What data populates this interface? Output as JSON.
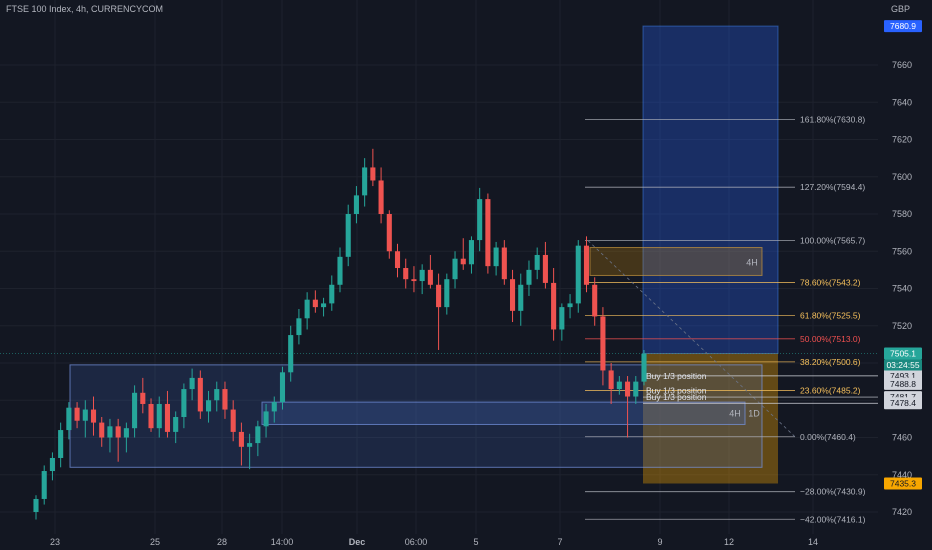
{
  "header": {
    "title": "FTSE 100 Index, 4h, CURRENCYCOM",
    "currency": "GBP"
  },
  "chart_data": {
    "type": "candlestick",
    "instrument": "FTSE 100 Index",
    "timeframe": "4h",
    "source": "CURRENCYCOM",
    "ylim": [
      7410,
      7690
    ],
    "y_ticks": [
      7420,
      7440,
      7460,
      7480,
      7500,
      7520,
      7540,
      7560,
      7580,
      7600,
      7620,
      7640,
      7660
    ],
    "x_ticks": [
      "23",
      "25",
      "28",
      "14:00",
      "Dec",
      "06:00",
      "5",
      "7",
      "9",
      "12",
      "14"
    ],
    "last_price": "7505.1",
    "countdown": "03:24:55",
    "candles": [
      [
        7420,
        7429,
        7416,
        7427
      ],
      [
        7427,
        7445,
        7424,
        7442
      ],
      [
        7442,
        7452,
        7437,
        7449
      ],
      [
        7449,
        7468,
        7444,
        7464
      ],
      [
        7464,
        7479,
        7459,
        7476
      ],
      [
        7476,
        7479,
        7465,
        7469
      ],
      [
        7469,
        7480,
        7460,
        7475
      ],
      [
        7475,
        7482,
        7461,
        7468
      ],
      [
        7468,
        7471,
        7455,
        7460
      ],
      [
        7460,
        7470,
        7452,
        7466
      ],
      [
        7466,
        7470,
        7447,
        7460
      ],
      [
        7460,
        7468,
        7452,
        7465
      ],
      [
        7465,
        7488,
        7460,
        7484
      ],
      [
        7484,
        7492,
        7473,
        7478
      ],
      [
        7478,
        7481,
        7463,
        7465
      ],
      [
        7465,
        7482,
        7460,
        7478
      ],
      [
        7478,
        7485,
        7460,
        7463
      ],
      [
        7463,
        7474,
        7457,
        7471
      ],
      [
        7471,
        7489,
        7465,
        7486
      ],
      [
        7486,
        7497,
        7480,
        7492
      ],
      [
        7492,
        7496,
        7470,
        7474
      ],
      [
        7474,
        7485,
        7468,
        7480
      ],
      [
        7480,
        7490,
        7474,
        7486
      ],
      [
        7486,
        7490,
        7470,
        7475
      ],
      [
        7475,
        7480,
        7458,
        7463
      ],
      [
        7463,
        7468,
        7445,
        7455
      ],
      [
        7455,
        7462,
        7443,
        7457
      ],
      [
        7457,
        7469,
        7450,
        7466
      ],
      [
        7466,
        7478,
        7460,
        7474
      ],
      [
        7474,
        7482,
        7468,
        7479
      ],
      [
        7479,
        7498,
        7475,
        7495
      ],
      [
        7495,
        7520,
        7490,
        7515
      ],
      [
        7515,
        7529,
        7510,
        7524
      ],
      [
        7524,
        7538,
        7518,
        7534
      ],
      [
        7534,
        7539,
        7527,
        7530
      ],
      [
        7530,
        7535,
        7525,
        7532
      ],
      [
        7532,
        7547,
        7528,
        7542
      ],
      [
        7542,
        7562,
        7538,
        7557
      ],
      [
        7557,
        7585,
        7552,
        7580
      ],
      [
        7580,
        7595,
        7575,
        7590
      ],
      [
        7590,
        7610,
        7584,
        7605
      ],
      [
        7605,
        7615,
        7595,
        7598
      ],
      [
        7598,
        7605,
        7575,
        7580
      ],
      [
        7580,
        7582,
        7556,
        7560
      ],
      [
        7560,
        7564,
        7546,
        7551
      ],
      [
        7551,
        7556,
        7540,
        7545
      ],
      [
        7545,
        7552,
        7538,
        7544
      ],
      [
        7544,
        7553,
        7537,
        7550
      ],
      [
        7550,
        7558,
        7540,
        7542
      ],
      [
        7542,
        7548,
        7507,
        7530
      ],
      [
        7530,
        7548,
        7526,
        7545
      ],
      [
        7545,
        7560,
        7540,
        7556
      ],
      [
        7556,
        7567,
        7550,
        7553
      ],
      [
        7553,
        7568,
        7548,
        7566
      ],
      [
        7566,
        7594,
        7560,
        7588
      ],
      [
        7588,
        7591,
        7548,
        7552
      ],
      [
        7552,
        7565,
        7547,
        7562
      ],
      [
        7562,
        7566,
        7542,
        7545
      ],
      [
        7545,
        7550,
        7522,
        7528
      ],
      [
        7528,
        7548,
        7520,
        7542
      ],
      [
        7542,
        7555,
        7536,
        7550
      ],
      [
        7550,
        7562,
        7545,
        7558
      ],
      [
        7558,
        7565,
        7540,
        7543
      ],
      [
        7543,
        7551,
        7512,
        7518
      ],
      [
        7518,
        7532,
        7512,
        7530
      ],
      [
        7530,
        7537,
        7524,
        7532
      ],
      [
        7532,
        7566,
        7527,
        7563
      ],
      [
        7563,
        7568,
        7538,
        7542
      ],
      [
        7542,
        7546,
        7520,
        7525
      ],
      [
        7525,
        7530,
        7488,
        7496
      ],
      [
        7496,
        7500,
        7478,
        7486
      ],
      [
        7486,
        7493,
        7483,
        7490
      ],
      [
        7490,
        7493,
        7460,
        7482
      ],
      [
        7482,
        7493,
        7478,
        7490
      ],
      [
        7490,
        7507,
        7488,
        7505
      ]
    ],
    "fib_levels": [
      {
        "label": "161.80%(7630.8)",
        "value": 7630.8,
        "color": "#b2b5be"
      },
      {
        "label": "127.20%(7594.4)",
        "value": 7594.4,
        "color": "#b2b5be"
      },
      {
        "label": "100.00%(7565.7)",
        "value": 7565.7,
        "color": "#b2b5be"
      },
      {
        "label": "78.60%(7543.2)",
        "value": 7543.2,
        "color": "#f6c05c"
      },
      {
        "label": "61.80%(7525.5)",
        "value": 7525.5,
        "color": "#f6c05c"
      },
      {
        "label": "50.00%(7513.0)",
        "value": 7513.0,
        "color": "#f05050"
      },
      {
        "label": "38.20%(7500.6)",
        "value": 7500.6,
        "color": "#f6c05c"
      },
      {
        "label": "23.60%(7485.2)",
        "value": 7485.2,
        "color": "#f6c05c"
      },
      {
        "label": "0.00%(7460.4)",
        "value": 7460.4,
        "color": "#b2b5be"
      },
      {
        "label": "−28.00%(7430.9)",
        "value": 7430.9,
        "color": "#b2b5be"
      },
      {
        "label": "−42.00%(7416.1)",
        "value": 7416.1,
        "color": "#b2b5be"
      }
    ],
    "zone_labels": {
      "zone_4h_top": "4H",
      "zone_4h_bottom": "4H",
      "zone_1d": "1D"
    },
    "buy_labels": [
      "Buy 1/3 position",
      "Buy 1/3 position",
      "Buy 1/3 position"
    ],
    "price_tags": [
      {
        "text": "7680.9",
        "value": 7680.9,
        "bg": "#2962ff",
        "fg": "#ffffff"
      },
      {
        "text": "7505.1",
        "value": 7505.1,
        "bg": "#26a69a",
        "fg": "#ffffff"
      },
      {
        "text": "7493.1",
        "value": 7493.1,
        "bg": "#d1d4dc",
        "fg": "#131722"
      },
      {
        "text": "7488.8",
        "value": 7488.8,
        "bg": "#d1d4dc",
        "fg": "#131722"
      },
      {
        "text": "7481.7",
        "value": 7481.7,
        "bg": "#d1d4dc",
        "fg": "#131722"
      },
      {
        "text": "7478.4",
        "value": 7478.4,
        "bg": "#d1d4dc",
        "fg": "#131722"
      },
      {
        "text": "7435.3",
        "value": 7435.3,
        "bg": "#f7a600",
        "fg": "#131722"
      }
    ],
    "colors": {
      "up": "#26a69a",
      "down": "#ef5350",
      "background": "#131722"
    }
  }
}
